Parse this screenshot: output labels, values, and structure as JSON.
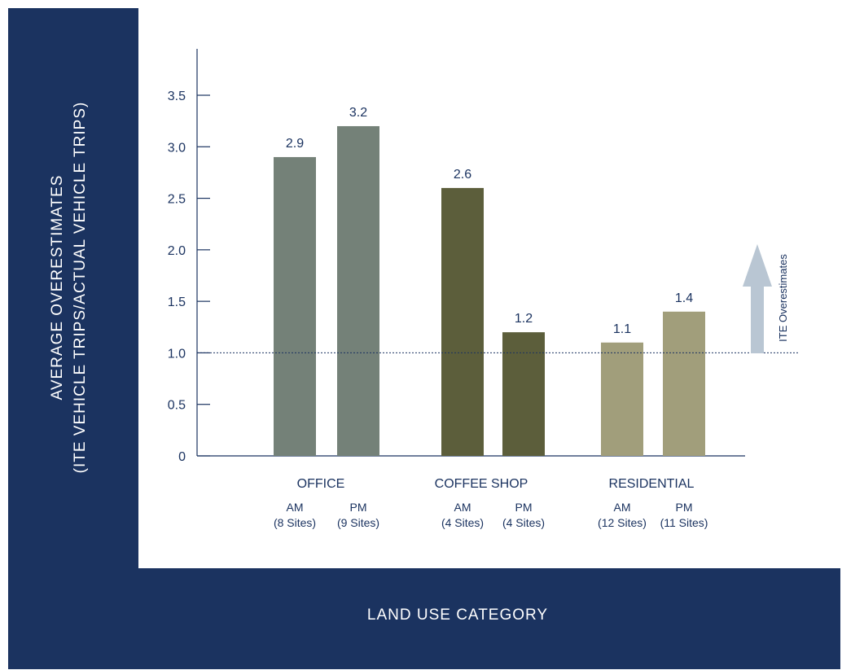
{
  "chart_data": {
    "type": "bar",
    "ylabel_lines": [
      "AVERAGE OVERESTIMATES",
      "(ITE VEHICLE TRIPS/ACTUAL VEHICLE TRIPS)"
    ],
    "xlabel": "LAND USE CATEGORY",
    "ylim": [
      0,
      3.5
    ],
    "yticks": [
      0,
      0.5,
      1.0,
      1.5,
      2.0,
      2.5,
      3.0,
      3.5
    ],
    "ytick_labels": [
      "0",
      "0.5",
      "1.0",
      "1.5",
      "2.0",
      "2.5",
      "3.0",
      "3.5"
    ],
    "reference_line": 1.0,
    "groups": [
      {
        "name": "OFFICE",
        "color": "#748178",
        "bars": [
          {
            "label": "AM",
            "sublabel": "(8 Sites)",
            "value": 2.9,
            "value_label": "2.9"
          },
          {
            "label": "PM",
            "sublabel": "(9 Sites)",
            "value": 3.2,
            "value_label": "3.2"
          }
        ]
      },
      {
        "name": "COFFEE SHOP",
        "color": "#5c5e3b",
        "bars": [
          {
            "label": "AM",
            "sublabel": "(4 Sites)",
            "value": 2.6,
            "value_label": "2.6"
          },
          {
            "label": "PM",
            "sublabel": "(4 Sites)",
            "value": 1.2,
            "value_label": "1.2"
          }
        ]
      },
      {
        "name": "RESIDENTIAL",
        "color": "#a19e7b",
        "bars": [
          {
            "label": "AM",
            "sublabel": "(12 Sites)",
            "value": 1.1,
            "value_label": "1.1"
          },
          {
            "label": "PM",
            "sublabel": "(11 Sites)",
            "value": 1.4,
            "value_label": "1.4"
          }
        ]
      }
    ],
    "annotation": {
      "text": "ITE Overestimates",
      "icon": "up-arrow-icon",
      "color": "#b9c6d3"
    }
  }
}
